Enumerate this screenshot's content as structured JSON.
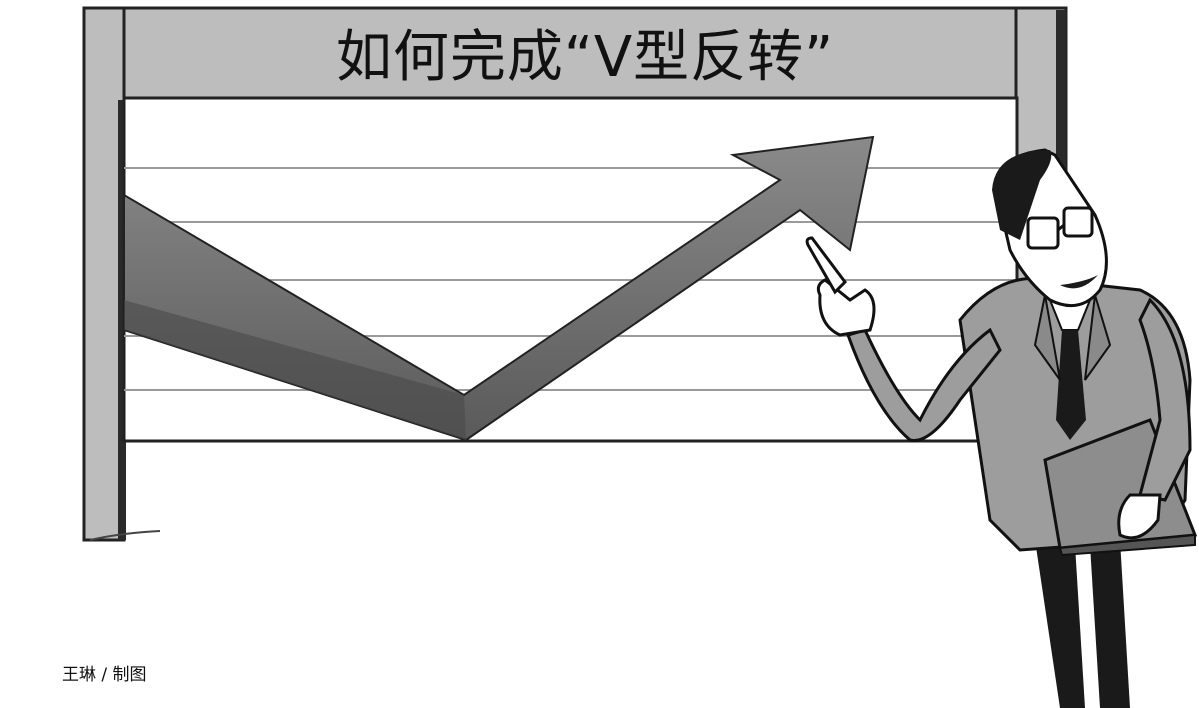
{
  "title": "如何完成“V型反转”",
  "credit": "王琳 / 制图",
  "colors": {
    "frame": "#b9b9b9",
    "frame_shadow": "#2a2a2a",
    "arrow": "#6f6f6f",
    "arrow_dark": "#4a4a4a",
    "grid_line": "#9a9a9a",
    "suit": "#9d9d9d",
    "ink": "#111111"
  },
  "icons": [
    "up-arrow-graphic",
    "businessman-figure",
    "folder-icon",
    "glasses-icon"
  ]
}
